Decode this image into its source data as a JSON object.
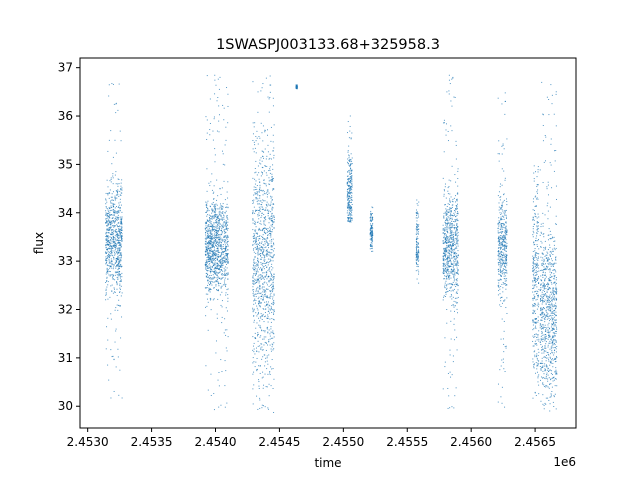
{
  "chart_data": {
    "type": "scatter",
    "title": "1SWASPJ003133.68+325958.3",
    "xlabel": "time",
    "ylabel": "flux",
    "x_offset_label": "1e6",
    "xlim": [
      2.45294,
      2.45682
    ],
    "ylim": [
      29.55,
      37.2
    ],
    "x_ticks": [
      2.453,
      2.4535,
      2.454,
      2.4545,
      2.455,
      2.4555,
      2.456,
      2.4565
    ],
    "x_tick_labels": [
      "2.4530",
      "2.4535",
      "2.4540",
      "2.4545",
      "2.4550",
      "2.4555",
      "2.4560",
      "2.4565"
    ],
    "y_ticks": [
      30,
      31,
      32,
      33,
      34,
      35,
      36,
      37
    ],
    "y_tick_labels": [
      "30",
      "31",
      "32",
      "33",
      "34",
      "35",
      "36",
      "37"
    ],
    "grid": false,
    "marker_color": "#1f77b4",
    "clusters": [
      {
        "x_start": 2.45314,
        "x_end": 2.45327,
        "center": 33.45,
        "spread": 0.55,
        "y_min": 30.15,
        "y_max": 36.85
      },
      {
        "x_start": 2.45392,
        "x_end": 2.4541,
        "center": 33.3,
        "spread": 0.5,
        "y_min": 29.9,
        "y_max": 36.85
      },
      {
        "x_start": 2.45429,
        "x_end": 2.45446,
        "center": 33.1,
        "spread": 1.2,
        "y_min": 29.85,
        "y_max": 36.85
      },
      {
        "x_start": 2.45463,
        "x_end": 2.45464,
        "center": 36.6,
        "spread": 0.02,
        "y_min": 36.55,
        "y_max": 36.65
      },
      {
        "x_start": 2.45503,
        "x_end": 2.45507,
        "center": 34.4,
        "spread": 0.45,
        "y_min": 33.8,
        "y_max": 36.1
      },
      {
        "x_start": 2.45521,
        "x_end": 2.45523,
        "center": 33.6,
        "spread": 0.2,
        "y_min": 33.2,
        "y_max": 34.3
      },
      {
        "x_start": 2.45557,
        "x_end": 2.45559,
        "center": 33.4,
        "spread": 0.35,
        "y_min": 32.5,
        "y_max": 34.4
      },
      {
        "x_start": 2.45578,
        "x_end": 2.4559,
        "center": 33.3,
        "spread": 0.6,
        "y_min": 29.85,
        "y_max": 36.85
      },
      {
        "x_start": 2.45621,
        "x_end": 2.45628,
        "center": 33.3,
        "spread": 0.5,
        "y_min": 29.9,
        "y_max": 36.5
      },
      {
        "x_start": 2.45648,
        "x_end": 2.45653,
        "center": 32.6,
        "spread": 1.1,
        "y_min": 30.1,
        "y_max": 35.0
      },
      {
        "x_start": 2.45654,
        "x_end": 2.45667,
        "center": 32.0,
        "spread": 0.9,
        "y_min": 29.9,
        "y_max": 36.7
      }
    ]
  }
}
